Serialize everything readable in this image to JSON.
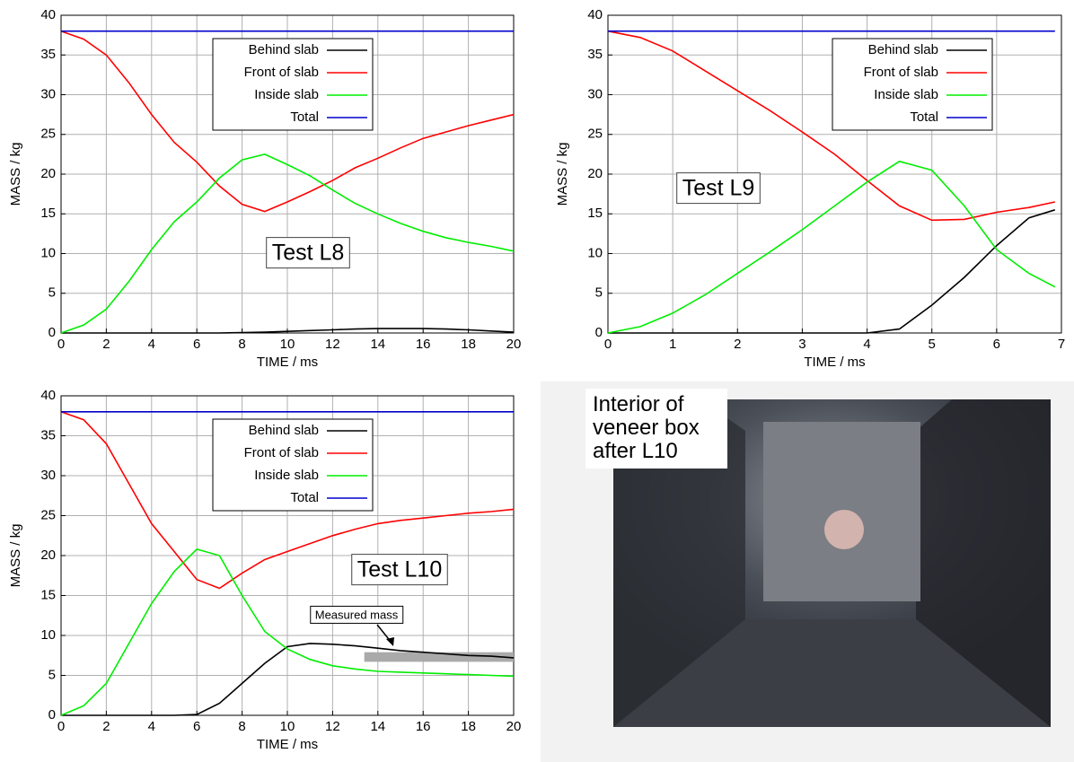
{
  "chart_data": [
    {
      "type": "line",
      "label": "Test L8",
      "xlabel": "TIME / ms",
      "ylabel": "MASS / kg",
      "xlim": [
        0,
        20
      ],
      "ylim": [
        0,
        40
      ],
      "xticks": [
        0,
        2,
        4,
        6,
        8,
        10,
        12,
        14,
        16,
        18,
        20
      ],
      "yticks": [
        0,
        5,
        10,
        15,
        20,
        25,
        30,
        35,
        40
      ],
      "grid": true,
      "legend": "upper center",
      "x": [
        0,
        1,
        2,
        3,
        4,
        5,
        6,
        7,
        8,
        9,
        10,
        11,
        12,
        13,
        14,
        15,
        16,
        17,
        18,
        19,
        20
      ],
      "series": [
        {
          "name": "Behind slab",
          "color": "#000000",
          "values": [
            0,
            0,
            0,
            0,
            0,
            0,
            0,
            0,
            0.05,
            0.1,
            0.2,
            0.3,
            0.4,
            0.5,
            0.55,
            0.55,
            0.55,
            0.5,
            0.4,
            0.25,
            0.1
          ]
        },
        {
          "name": "Front of slab",
          "color": "#ff0000",
          "values": [
            38,
            37,
            35,
            31.5,
            27.5,
            24,
            21.5,
            18.5,
            16.2,
            15.3,
            16.5,
            17.8,
            19.2,
            20.8,
            22,
            23.3,
            24.5,
            25.3,
            26.1,
            26.8,
            27.5
          ]
        },
        {
          "name": "Inside slab",
          "color": "#00ee00",
          "values": [
            0,
            1,
            3,
            6.5,
            10.5,
            14,
            16.5,
            19.5,
            21.8,
            22.5,
            21.2,
            19.8,
            18,
            16.3,
            15,
            13.8,
            12.8,
            12,
            11.4,
            10.9,
            10.3
          ]
        },
        {
          "name": "Total",
          "color": "#0000cc",
          "values": [
            38,
            38,
            38,
            38,
            38,
            38,
            38,
            38,
            38,
            38,
            38,
            38,
            38,
            38,
            38,
            38,
            38,
            38,
            38,
            38,
            38
          ]
        }
      ]
    },
    {
      "type": "line",
      "label": "Test L9",
      "xlabel": "TIME / ms",
      "ylabel": "MASS / kg",
      "xlim": [
        0,
        7
      ],
      "ylim": [
        0,
        40
      ],
      "xticks": [
        0,
        1,
        2,
        3,
        4,
        5,
        6,
        7
      ],
      "yticks": [
        0,
        5,
        10,
        15,
        20,
        25,
        30,
        35,
        40
      ],
      "grid": true,
      "legend": "upper right",
      "x": [
        0,
        0.5,
        1,
        1.5,
        2,
        2.5,
        3,
        3.5,
        4,
        4.5,
        5,
        5.5,
        6,
        6.5,
        6.9
      ],
      "series": [
        {
          "name": "Behind slab",
          "color": "#000000",
          "values": [
            0,
            0,
            0,
            0,
            0,
            0,
            0,
            0,
            0,
            0.5,
            3.5,
            7,
            11,
            14.5,
            15.5
          ]
        },
        {
          "name": "Front of slab",
          "color": "#ff0000",
          "values": [
            38,
            37.2,
            35.5,
            33,
            30.5,
            28,
            25.3,
            22.5,
            19.2,
            16,
            14.2,
            14.3,
            15.2,
            15.8,
            16.5
          ]
        },
        {
          "name": "Inside slab",
          "color": "#00ee00",
          "values": [
            0,
            0.8,
            2.5,
            4.8,
            7.5,
            10.2,
            13,
            16,
            19,
            21.6,
            20.5,
            16,
            10.5,
            7.5,
            5.8
          ]
        },
        {
          "name": "Total",
          "color": "#0000cc",
          "values": [
            38,
            38,
            38,
            38,
            38,
            38,
            38,
            38,
            38,
            38,
            38,
            38,
            38,
            38,
            38
          ]
        }
      ]
    },
    {
      "type": "line",
      "label": "Test L10",
      "xlabel": "TIME / ms",
      "ylabel": "MASS / kg",
      "xlim": [
        0,
        20
      ],
      "ylim": [
        0,
        40
      ],
      "xticks": [
        0,
        2,
        4,
        6,
        8,
        10,
        12,
        14,
        16,
        18,
        20
      ],
      "yticks": [
        0,
        5,
        10,
        15,
        20,
        25,
        30,
        35,
        40
      ],
      "grid": true,
      "legend": "upper center",
      "x": [
        0,
        1,
        2,
        3,
        4,
        5,
        6,
        7,
        8,
        9,
        10,
        11,
        12,
        13,
        14,
        15,
        16,
        17,
        18,
        19,
        20
      ],
      "series": [
        {
          "name": "Behind slab",
          "color": "#000000",
          "values": [
            0,
            0,
            0,
            0,
            0,
            0,
            0.1,
            1.5,
            4,
            6.5,
            8.6,
            9,
            8.9,
            8.7,
            8.4,
            8.1,
            7.9,
            7.7,
            7.5,
            7.4,
            7.2
          ]
        },
        {
          "name": "Front of slab",
          "color": "#ff0000",
          "values": [
            38,
            37,
            34,
            29,
            24,
            20.5,
            17,
            15.9,
            17.8,
            19.5,
            20.5,
            21.5,
            22.5,
            23.3,
            24,
            24.4,
            24.7,
            25,
            25.3,
            25.5,
            25.8
          ]
        },
        {
          "name": "Inside slab",
          "color": "#00ee00",
          "values": [
            0,
            1.2,
            4,
            9,
            14,
            18,
            20.8,
            20,
            15,
            10.5,
            8.3,
            7,
            6.2,
            5.8,
            5.5,
            5.4,
            5.3,
            5.2,
            5.1,
            5,
            4.9
          ]
        },
        {
          "name": "Total",
          "color": "#0000cc",
          "values": [
            38,
            38,
            38,
            38,
            38,
            38,
            38,
            38,
            38,
            38,
            38,
            38,
            38,
            38,
            38,
            38,
            38,
            38,
            38,
            38,
            38
          ]
        }
      ],
      "annotation": "Measured mass",
      "measured_band": {
        "x": [
          13.4,
          20
        ],
        "y": [
          6.7,
          7.9
        ]
      }
    }
  ],
  "photo": {
    "caption": [
      "Interior of",
      "veneer box",
      "after L10"
    ]
  }
}
